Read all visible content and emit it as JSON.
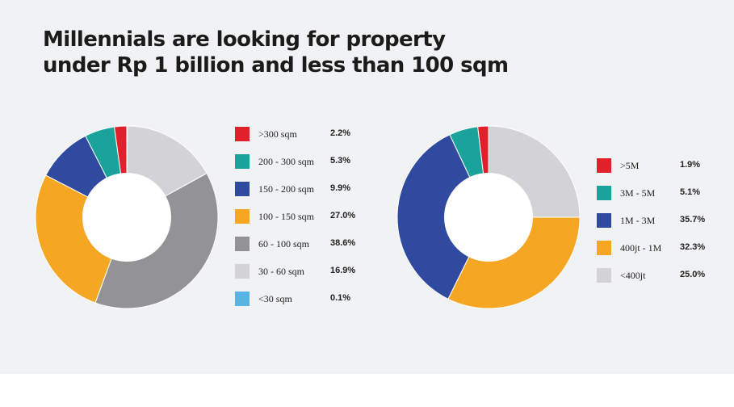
{
  "title": "Millennials are looking for property\nunder Rp 1 billion and less than 100 sqm",
  "chart_data": [
    {
      "type": "pie",
      "donut": true,
      "legend_position": "right",
      "legend_entries": [
        {
          "label": ">300 sqm",
          "value_text": "2.2%",
          "value": 2.2,
          "color": "#e0212b"
        },
        {
          "label": "200 - 300 sqm",
          "value_text": "5.3%",
          "value": 5.3,
          "color": "#1aa39a"
        },
        {
          "label": "150 - 200 sqm",
          "value_text": "9.9%",
          "value": 9.9,
          "color": "#2f4a9f"
        },
        {
          "label": "100 - 150 sqm",
          "value_text": "27.0%",
          "value": 27.0,
          "color": "#f5a623"
        },
        {
          "label": "60 - 100 sqm",
          "value_text": "38.6%",
          "value": 38.6,
          "color": "#939396"
        },
        {
          "label": "30 - 60 sqm",
          "value_text": "16.9%",
          "value": 16.9,
          "color": "#d3d3d5"
        },
        {
          "label": "<30 sqm",
          "value_text": "0.1%",
          "value": 0.1,
          "color": "#59b4e3"
        }
      ]
    },
    {
      "type": "pie",
      "donut": true,
      "legend_position": "right",
      "legend_entries": [
        {
          "label": ">5M",
          "value_text": "1.9%",
          "value": 1.9,
          "color": "#e0212b"
        },
        {
          "label": "3M - 5M",
          "value_text": "5.1%",
          "value": 5.1,
          "color": "#1aa39a"
        },
        {
          "label": "1M - 3M",
          "value_text": "35.7%",
          "value": 35.7,
          "color": "#2f4a9f"
        },
        {
          "label": "400jt - 1M",
          "value_text": "32.3%",
          "value": 32.3,
          "color": "#f5a623"
        },
        {
          "label": "<400jt",
          "value_text": "25.0%",
          "value": 25.0,
          "color": "#d3d3d5"
        }
      ]
    }
  ]
}
